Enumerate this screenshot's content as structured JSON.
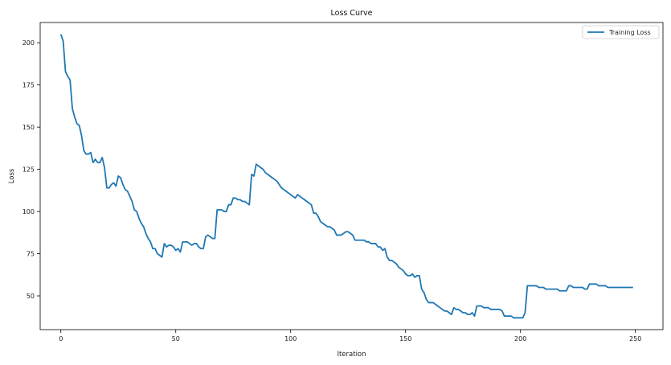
{
  "chart_data": {
    "type": "line",
    "title": "Loss Curve",
    "xlabel": "Iteration",
    "ylabel": "Loss",
    "xlim": [
      -9,
      262
    ],
    "ylim": [
      30,
      212
    ],
    "xticks": [
      0,
      50,
      100,
      150,
      200,
      250
    ],
    "yticks": [
      50,
      75,
      100,
      125,
      150,
      175,
      200
    ],
    "grid": false,
    "legend": {
      "position": "top-right",
      "entries": [
        "Training Loss"
      ]
    },
    "series": [
      {
        "name": "Training Loss",
        "color": "#1f77b4",
        "points": [
          [
            0,
            205
          ],
          [
            1,
            201
          ],
          [
            2,
            183
          ],
          [
            3,
            180
          ],
          [
            4,
            178
          ],
          [
            5,
            161
          ],
          [
            6,
            156
          ],
          [
            7,
            152
          ],
          [
            8,
            151
          ],
          [
            9,
            145
          ],
          [
            10,
            136
          ],
          [
            11,
            134
          ],
          [
            12,
            134
          ],
          [
            13,
            135
          ],
          [
            14,
            129
          ],
          [
            15,
            131
          ],
          [
            16,
            129
          ],
          [
            17,
            129
          ],
          [
            18,
            132
          ],
          [
            19,
            126
          ],
          [
            20,
            114
          ],
          [
            21,
            114
          ],
          [
            22,
            116
          ],
          [
            23,
            117
          ],
          [
            24,
            115
          ],
          [
            25,
            121
          ],
          [
            26,
            120
          ],
          [
            27,
            116
          ],
          [
            28,
            113
          ],
          [
            29,
            112
          ],
          [
            30,
            109
          ],
          [
            31,
            106
          ],
          [
            32,
            101
          ],
          [
            33,
            100
          ],
          [
            34,
            96
          ],
          [
            35,
            93
          ],
          [
            36,
            91
          ],
          [
            37,
            87
          ],
          [
            38,
            84
          ],
          [
            39,
            82
          ],
          [
            40,
            78
          ],
          [
            41,
            78
          ],
          [
            42,
            75
          ],
          [
            43,
            74
          ],
          [
            44,
            73
          ],
          [
            45,
            81
          ],
          [
            46,
            79
          ],
          [
            47,
            80
          ],
          [
            48,
            80
          ],
          [
            49,
            79
          ],
          [
            50,
            77
          ],
          [
            51,
            78
          ],
          [
            52,
            76
          ],
          [
            53,
            82
          ],
          [
            54,
            82
          ],
          [
            55,
            82
          ],
          [
            56,
            81
          ],
          [
            57,
            80
          ],
          [
            58,
            81
          ],
          [
            59,
            81
          ],
          [
            60,
            79
          ],
          [
            61,
            78
          ],
          [
            62,
            78
          ],
          [
            63,
            85
          ],
          [
            64,
            86
          ],
          [
            65,
            85
          ],
          [
            66,
            84
          ],
          [
            67,
            84
          ],
          [
            68,
            101
          ],
          [
            69,
            101
          ],
          [
            70,
            101
          ],
          [
            71,
            100
          ],
          [
            72,
            100
          ],
          [
            73,
            104
          ],
          [
            74,
            104
          ],
          [
            75,
            108
          ],
          [
            76,
            108
          ],
          [
            77,
            107
          ],
          [
            78,
            107
          ],
          [
            79,
            106
          ],
          [
            80,
            106
          ],
          [
            81,
            105
          ],
          [
            82,
            104
          ],
          [
            83,
            122
          ],
          [
            84,
            121
          ],
          [
            85,
            128
          ],
          [
            86,
            127
          ],
          [
            87,
            126
          ],
          [
            88,
            125
          ],
          [
            89,
            123
          ],
          [
            90,
            122
          ],
          [
            91,
            121
          ],
          [
            92,
            120
          ],
          [
            93,
            119
          ],
          [
            94,
            118
          ],
          [
            95,
            116
          ],
          [
            96,
            114
          ],
          [
            97,
            113
          ],
          [
            98,
            112
          ],
          [
            99,
            111
          ],
          [
            100,
            110
          ],
          [
            101,
            109
          ],
          [
            102,
            108
          ],
          [
            103,
            110
          ],
          [
            104,
            109
          ],
          [
            105,
            108
          ],
          [
            106,
            107
          ],
          [
            107,
            106
          ],
          [
            108,
            105
          ],
          [
            109,
            104
          ],
          [
            110,
            99
          ],
          [
            111,
            99
          ],
          [
            112,
            97
          ],
          [
            113,
            94
          ],
          [
            114,
            93
          ],
          [
            115,
            92
          ],
          [
            116,
            91
          ],
          [
            117,
            91
          ],
          [
            118,
            90
          ],
          [
            119,
            89
          ],
          [
            120,
            86
          ],
          [
            121,
            86
          ],
          [
            122,
            86
          ],
          [
            123,
            87
          ],
          [
            124,
            88
          ],
          [
            125,
            88
          ],
          [
            126,
            87
          ],
          [
            127,
            86
          ],
          [
            128,
            83
          ],
          [
            129,
            83
          ],
          [
            130,
            83
          ],
          [
            131,
            83
          ],
          [
            132,
            83
          ],
          [
            133,
            82
          ],
          [
            134,
            82
          ],
          [
            135,
            81
          ],
          [
            136,
            81
          ],
          [
            137,
            81
          ],
          [
            138,
            79
          ],
          [
            139,
            79
          ],
          [
            140,
            77
          ],
          [
            141,
            78
          ],
          [
            142,
            73
          ],
          [
            143,
            71
          ],
          [
            144,
            71
          ],
          [
            145,
            70
          ],
          [
            146,
            69
          ],
          [
            147,
            67
          ],
          [
            148,
            66
          ],
          [
            149,
            65
          ],
          [
            150,
            63
          ],
          [
            151,
            62
          ],
          [
            152,
            62
          ],
          [
            153,
            63
          ],
          [
            154,
            61
          ],
          [
            155,
            62
          ],
          [
            156,
            62
          ],
          [
            157,
            54
          ],
          [
            158,
            52
          ],
          [
            159,
            48
          ],
          [
            160,
            46
          ],
          [
            161,
            46
          ],
          [
            162,
            46
          ],
          [
            163,
            45
          ],
          [
            164,
            44
          ],
          [
            165,
            43
          ],
          [
            166,
            42
          ],
          [
            167,
            41
          ],
          [
            168,
            41
          ],
          [
            169,
            40
          ],
          [
            170,
            39
          ],
          [
            171,
            43
          ],
          [
            172,
            42
          ],
          [
            173,
            42
          ],
          [
            174,
            41
          ],
          [
            175,
            40
          ],
          [
            176,
            40
          ],
          [
            177,
            39
          ],
          [
            178,
            39
          ],
          [
            179,
            40
          ],
          [
            180,
            38
          ],
          [
            181,
            44
          ],
          [
            182,
            44
          ],
          [
            183,
            44
          ],
          [
            184,
            43
          ],
          [
            185,
            43
          ],
          [
            186,
            43
          ],
          [
            187,
            42
          ],
          [
            188,
            42
          ],
          [
            189,
            42
          ],
          [
            190,
            42
          ],
          [
            191,
            42
          ],
          [
            192,
            41
          ],
          [
            193,
            38
          ],
          [
            194,
            38
          ],
          [
            195,
            38
          ],
          [
            196,
            38
          ],
          [
            197,
            37
          ],
          [
            198,
            37
          ],
          [
            199,
            37
          ],
          [
            200,
            37
          ],
          [
            201,
            37
          ],
          [
            202,
            40
          ],
          [
            203,
            56
          ],
          [
            204,
            56
          ],
          [
            205,
            56
          ],
          [
            206,
            56
          ],
          [
            207,
            56
          ],
          [
            208,
            55
          ],
          [
            209,
            55
          ],
          [
            210,
            55
          ],
          [
            211,
            54
          ],
          [
            212,
            54
          ],
          [
            213,
            54
          ],
          [
            214,
            54
          ],
          [
            215,
            54
          ],
          [
            216,
            54
          ],
          [
            217,
            53
          ],
          [
            218,
            53
          ],
          [
            219,
            53
          ],
          [
            220,
            53
          ],
          [
            221,
            56
          ],
          [
            222,
            56
          ],
          [
            223,
            55
          ],
          [
            224,
            55
          ],
          [
            225,
            55
          ],
          [
            226,
            55
          ],
          [
            227,
            55
          ],
          [
            228,
            54
          ],
          [
            229,
            54
          ],
          [
            230,
            57
          ],
          [
            231,
            57
          ],
          [
            232,
            57
          ],
          [
            233,
            57
          ],
          [
            234,
            56
          ],
          [
            235,
            56
          ],
          [
            236,
            56
          ],
          [
            237,
            56
          ],
          [
            238,
            55
          ],
          [
            239,
            55
          ],
          [
            240,
            55
          ],
          [
            241,
            55
          ],
          [
            242,
            55
          ],
          [
            243,
            55
          ],
          [
            244,
            55
          ],
          [
            245,
            55
          ],
          [
            246,
            55
          ],
          [
            247,
            55
          ],
          [
            248,
            55
          ],
          [
            249,
            55
          ]
        ]
      }
    ]
  }
}
